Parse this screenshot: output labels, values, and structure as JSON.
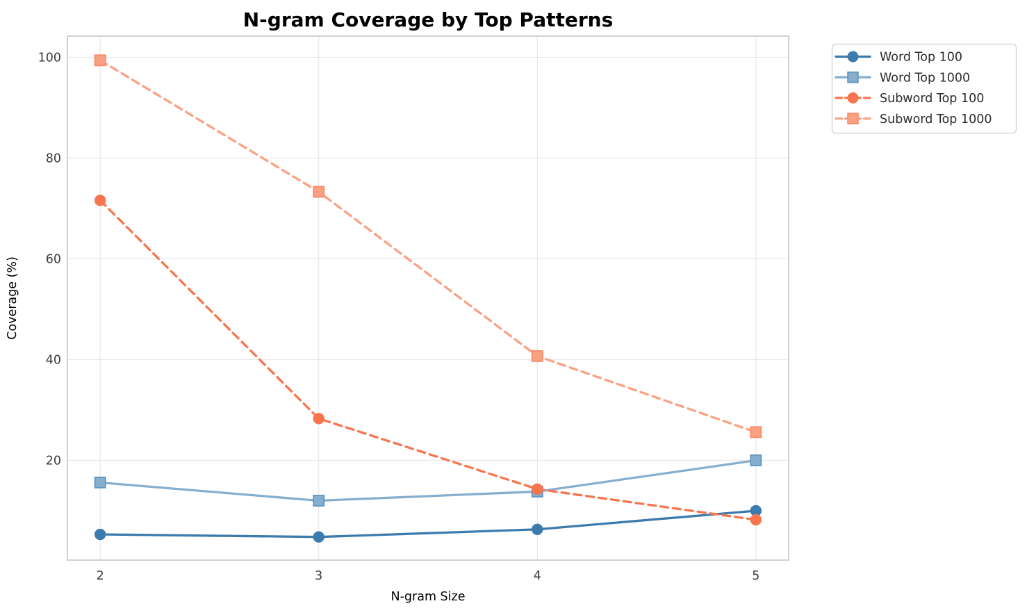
{
  "chart_data": {
    "type": "line",
    "title": "N-gram Coverage by Top Patterns",
    "xlabel": "N-gram Size",
    "ylabel": "Coverage (%)",
    "x": [
      2,
      3,
      4,
      5
    ],
    "xticks": [
      2,
      3,
      4,
      5
    ],
    "yticks": [
      20,
      40,
      60,
      80,
      100
    ],
    "xlim": [
      1.85,
      5.15
    ],
    "ylim": [
      0.2,
      104.2
    ],
    "grid": true,
    "legend_position": "outside-upper-right",
    "series": [
      {
        "name": "Word Top 100",
        "values": [
          5.3,
          4.8,
          6.3,
          10.0
        ],
        "color": "#3E7BAD",
        "marker": "circle",
        "marker_edge": "#3E7BAD",
        "line_style": "solid"
      },
      {
        "name": "Word Top 1000",
        "values": [
          15.6,
          12.0,
          13.8,
          20.0
        ],
        "color": "#86AECF",
        "marker": "square",
        "marker_edge": "#6196C1",
        "line_style": "solid"
      },
      {
        "name": "Subword Top 100",
        "values": [
          71.6,
          28.3,
          14.3,
          8.2
        ],
        "color": "#F8744D",
        "marker": "circle",
        "marker_edge": "#F8744D",
        "line_style": "dashed"
      },
      {
        "name": "Subword Top 1000",
        "values": [
          99.4,
          73.3,
          40.7,
          25.6
        ],
        "color": "#FBA habits183",
        "marker": "square",
        "marker_edge": "#F98C66",
        "line_style": "dashed"
      }
    ],
    "style": {
      "title_color": "#262626",
      "tick_color": "#3a3a3a",
      "axis_label_color": "#3a3a3a",
      "grid_color": "#e7e7e7",
      "spine_color": "#cdcdcd",
      "legend_border_color": "#cfcfcf",
      "legend_bg_color": "#ffffff",
      "legend_text_color": "#2b2b2b"
    }
  }
}
